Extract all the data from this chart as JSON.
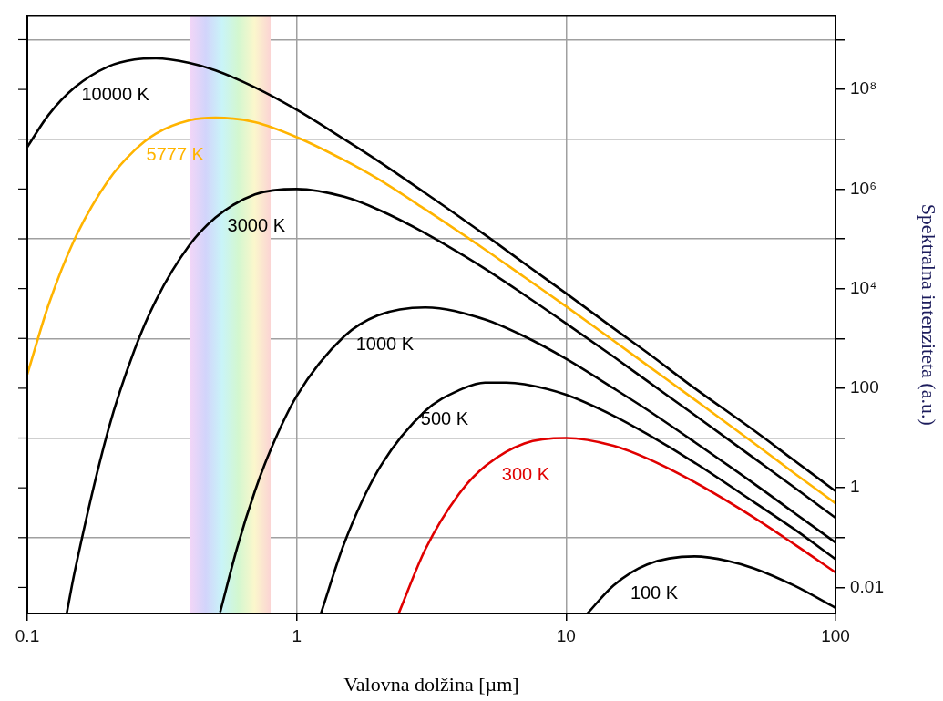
{
  "chart_data": {
    "type": "line",
    "xlabel": "Valovna dolžina [µm]",
    "ylabel": "Spektralna intenziteta (a.u.)",
    "log": "xy",
    "grid": true,
    "line_style": "solid",
    "xlim": [
      0.1,
      100
    ],
    "xticks": [
      0.1,
      1,
      10,
      100
    ],
    "ylim": [
      0.003,
      3000000000
    ],
    "yticks": [
      {
        "value": 100000000,
        "label": "10⁸"
      },
      {
        "value": 1000000,
        "label": "10⁶"
      },
      {
        "value": 10000,
        "label": "10⁴"
      },
      100,
      1,
      0.01,
      {
        "value": 1000000000,
        "label": null
      },
      {
        "value": 10000000,
        "label": null
      },
      {
        "value": 100000,
        "label": null
      },
      {
        "value": 1000,
        "label": null
      },
      {
        "value": 10,
        "label": null
      },
      {
        "value": 0.1,
        "label": null
      }
    ],
    "bands": [
      {
        "axis": "x",
        "from": 0.4,
        "to": 0.8
      }
    ],
    "series": [
      {
        "name": "10000 K",
        "color": "#000000",
        "x": [
          0.1,
          0.12,
          0.15,
          0.2,
          0.25,
          0.3,
          0.4,
          0.5,
          0.7,
          1,
          1.5,
          2,
          3,
          5,
          7,
          10,
          15,
          20,
          30,
          50,
          70,
          100
        ],
        "values": [
          7000000,
          31000000,
          110000000,
          290000000,
          400000000,
          420000000,
          340000000,
          240000000,
          110000000,
          39000000,
          10000000,
          3700000,
          830000,
          120000,
          32000,
          8000,
          1600,
          520,
          100,
          14,
          3.6,
          0.86
        ]
      },
      {
        "name": "5777 K",
        "color": "#ffb400",
        "x": [
          0.1,
          0.12,
          0.15,
          0.2,
          0.25,
          0.3,
          0.4,
          0.5,
          0.7,
          1,
          1.5,
          2,
          3,
          5,
          7,
          10,
          15,
          20,
          30,
          50,
          70,
          100
        ],
        "values": [
          190,
          4800,
          100000,
          1500000,
          6000000,
          13000000,
          24000000,
          27000000,
          22000000,
          11000000,
          3800000,
          1600000,
          390000,
          61000,
          17000,
          4400,
          900,
          290,
          59,
          7.8,
          2.0,
          0.49
        ]
      },
      {
        "name": "3000 K",
        "color": "#000000",
        "x": [
          0.14,
          0.15,
          0.2,
          0.25,
          0.3,
          0.4,
          0.5,
          0.7,
          1,
          1.5,
          2,
          3,
          5,
          7,
          10,
          15,
          20,
          30,
          50,
          70,
          100
        ],
        "values": [
          0.003,
          0.021,
          15,
          590,
          5800,
          75000,
          270000,
          780000,
          1000000,
          700000,
          390000,
          130000,
          25000,
          7500,
          2000,
          430,
          140,
          29,
          3.9,
          1.04,
          0.25
        ]
      },
      {
        "name": "1000 K",
        "color": "#000000",
        "x": [
          0.52,
          0.6,
          0.7,
          0.8,
          1,
          1.5,
          2,
          3,
          5,
          7,
          10,
          15,
          20,
          30,
          50,
          70,
          100
        ],
        "values": [
          0.0032,
          0.061,
          0.87,
          5.8,
          70,
          1100,
          2900,
          4200,
          2400,
          1100,
          390,
          100,
          37,
          8.3,
          1.2,
          0.32,
          0.08
        ]
      },
      {
        "name": "500 K",
        "color": "#000000",
        "x": [
          1.23,
          1.5,
          2,
          3,
          4,
          5,
          6,
          7,
          10,
          15,
          20,
          30,
          50,
          70,
          100
        ],
        "values": [
          0.003,
          0.076,
          2.2,
          35,
          91,
          130,
          130,
          120,
          74,
          28,
          12,
          3.2,
          0.51,
          0.15,
          0.037
        ]
      },
      {
        "name": "300 K",
        "color": "#e00000",
        "x": [
          2.39,
          3,
          4,
          5,
          7,
          10,
          15,
          20,
          30,
          50,
          70,
          100
        ],
        "values": [
          0.003,
          0.058,
          0.75,
          2.7,
          7.8,
          10,
          7.0,
          3.9,
          1.3,
          0.25,
          0.075,
          0.02
        ]
      },
      {
        "name": "100 K",
        "color": "#000000",
        "x": [
          12,
          15,
          20,
          30,
          40,
          50,
          70,
          100
        ],
        "values": [
          0.003,
          0.011,
          0.029,
          0.042,
          0.034,
          0.024,
          0.011,
          0.0039
        ]
      }
    ]
  }
}
